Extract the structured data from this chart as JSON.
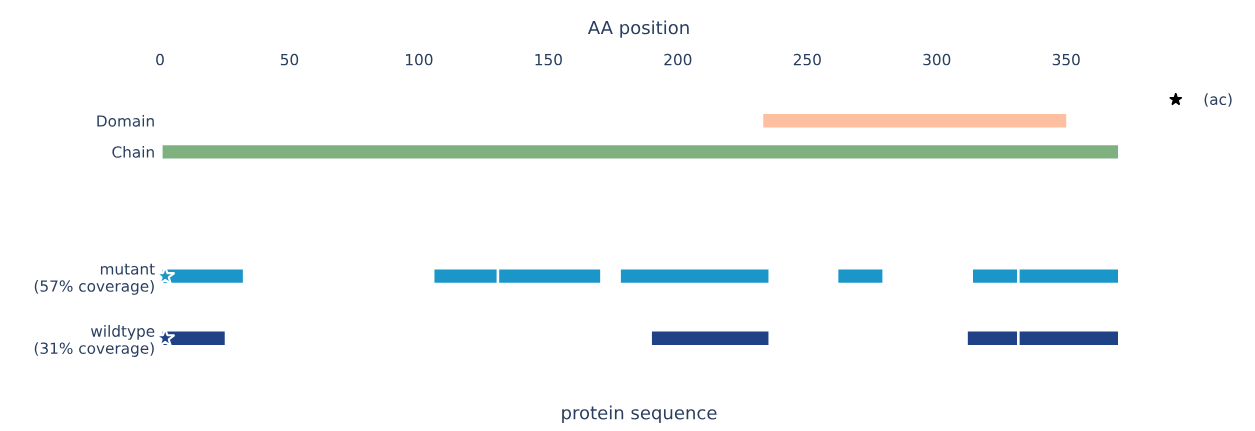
{
  "chart_data": {
    "type": "bar",
    "orientation": "horizontal",
    "categories": [
      "Domain",
      "Chain",
      null,
      null,
      null,
      "mutant\n(57% coverage)",
      null,
      "wildtype\n(31% coverage)"
    ],
    "xlabel": "AA position",
    "annotations": [
      "protein sequence"
    ],
    "xlim": [
      0,
      370
    ],
    "xticks": [
      0,
      50,
      100,
      150,
      200,
      250,
      300,
      350
    ],
    "series": [
      {
        "base": [
          233,
          1,
          null,
          null,
          null,
          1,
          null,
          1
        ],
        "values": [
          117,
          369,
          null,
          null,
          null,
          31,
          null,
          24
        ],
        "colors": [
          "#fdbf9f",
          "#7fb07f",
          null,
          null,
          null,
          "#1a96c8",
          null,
          "#1f4287"
        ]
      },
      {
        "base": [
          null,
          null,
          null,
          null,
          null,
          106,
          null,
          190
        ],
        "values": [
          null,
          null,
          null,
          null,
          null,
          24,
          null,
          45
        ],
        "colors": [
          null,
          null,
          null,
          null,
          null,
          "#1a96c8",
          null,
          "#1f4287"
        ]
      },
      {
        "base": [
          null,
          null,
          null,
          null,
          null,
          131,
          null,
          312
        ],
        "values": [
          null,
          null,
          null,
          null,
          null,
          39,
          null,
          19
        ],
        "colors": [
          null,
          null,
          null,
          null,
          null,
          "#1a96c8",
          null,
          "#1f4287"
        ]
      },
      {
        "base": [
          null,
          null,
          null,
          null,
          null,
          178,
          null,
          332
        ],
        "values": [
          null,
          null,
          null,
          null,
          null,
          57,
          null,
          38
        ],
        "colors": [
          null,
          null,
          null,
          null,
          null,
          "#1a96c8",
          null,
          "#1f4287"
        ]
      },
      {
        "base": [
          null,
          null,
          null,
          null,
          null,
          262,
          null,
          null
        ],
        "values": [
          null,
          null,
          null,
          null,
          null,
          17,
          null,
          null
        ],
        "colors": [
          null,
          null,
          null,
          null,
          null,
          "#1a96c8",
          null,
          null
        ]
      },
      {
        "base": [
          null,
          null,
          null,
          null,
          null,
          314,
          null,
          null
        ],
        "values": [
          null,
          null,
          null,
          null,
          null,
          17,
          null,
          null
        ],
        "colors": [
          null,
          null,
          null,
          null,
          null,
          "#1a96c8",
          null,
          null
        ]
      },
      {
        "base": [
          null,
          null,
          null,
          null,
          null,
          332,
          null,
          null
        ],
        "values": [
          null,
          null,
          null,
          null,
          null,
          38,
          null,
          null
        ],
        "colors": [
          null,
          null,
          null,
          null,
          null,
          "#1a96c8",
          null,
          null
        ]
      },
      {
        "type": "scatter",
        "name": "(ac)",
        "marker": "star",
        "color": "#000000",
        "values": [
          null,
          null,
          null,
          null,
          null,
          2,
          null,
          2
        ],
        "colors": [
          null,
          null,
          null,
          null,
          null,
          "#1a96c8",
          null,
          "#1f4287"
        ]
      }
    ],
    "legend": "top right"
  }
}
